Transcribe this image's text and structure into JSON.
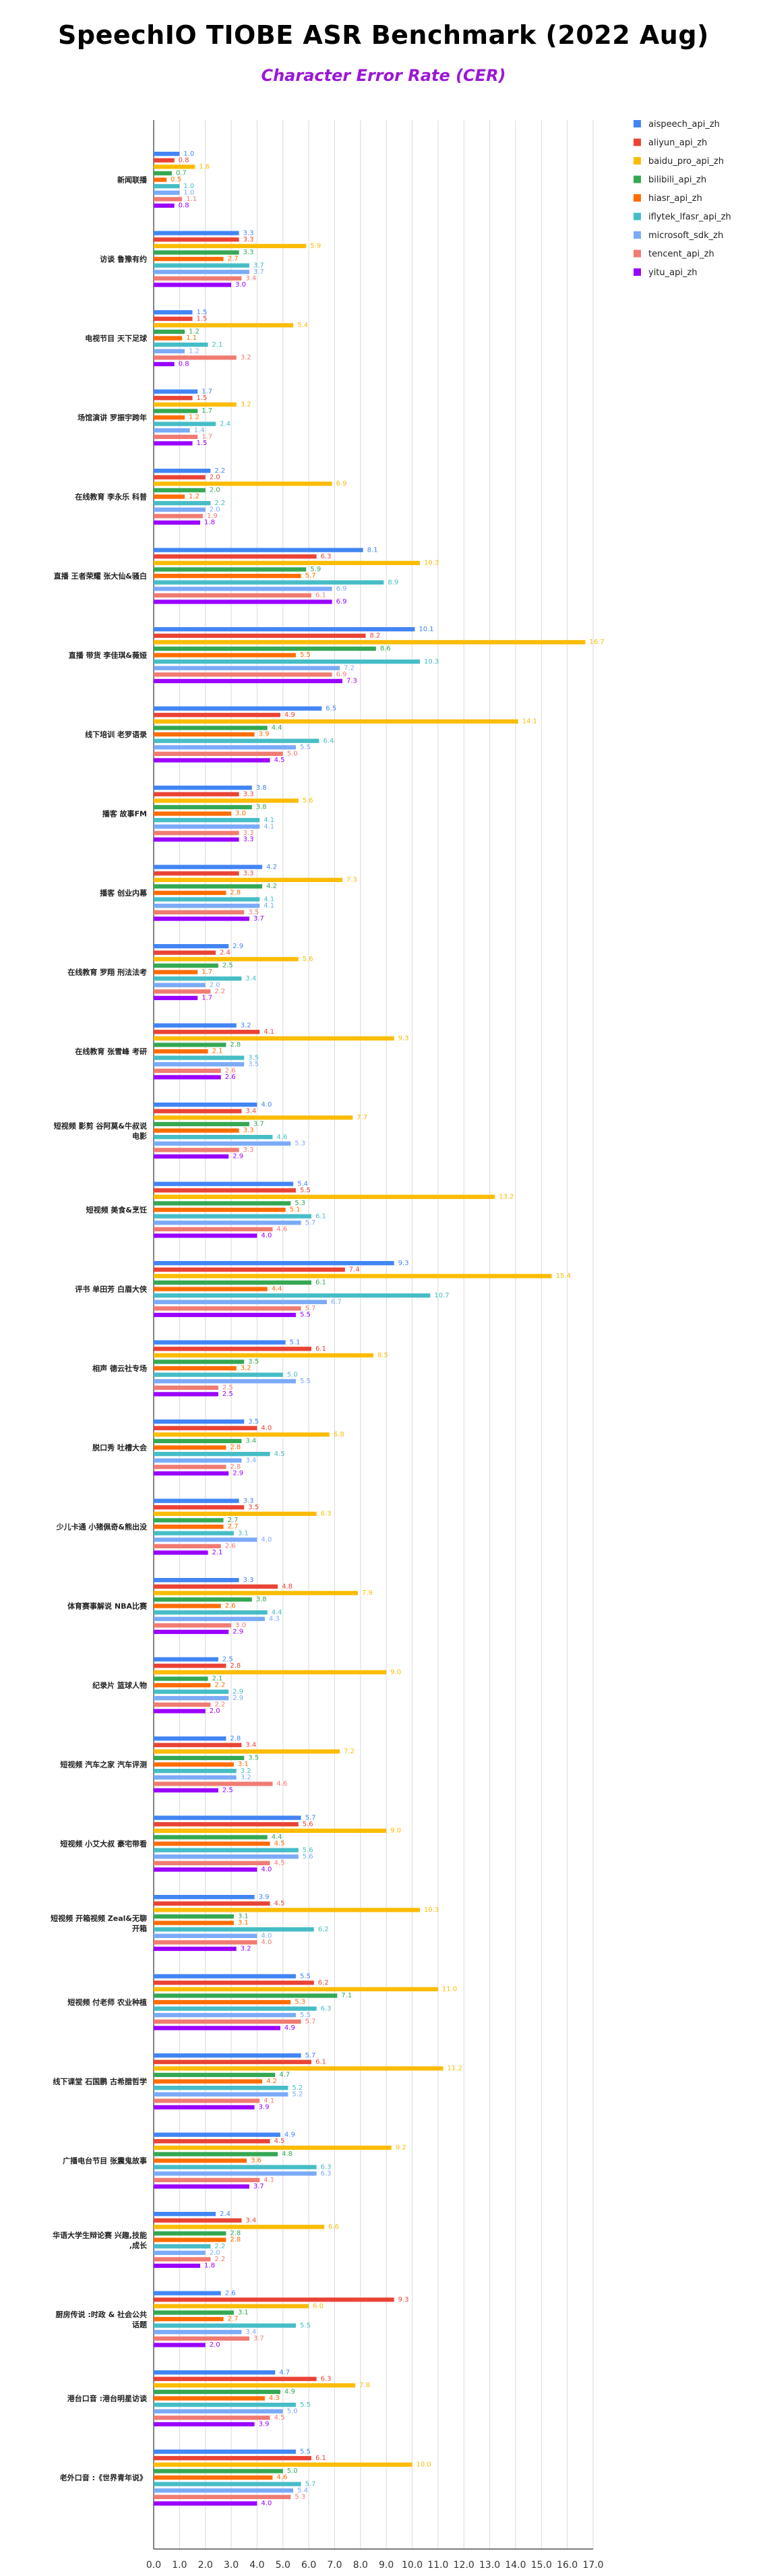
{
  "title": "SpeechIO TIOBE ASR Benchmark (2022 Aug)",
  "subtitle": "Character Error Rate (CER)",
  "chart_data": {
    "type": "bar",
    "orientation": "horizontal",
    "title": "SpeechIO TIOBE ASR Benchmark (2022 Aug)",
    "subtitle": "Character Error Rate (CER)",
    "xlim": [
      0,
      17
    ],
    "xticks": [
      "0.0",
      "1.0",
      "2.0",
      "3.0",
      "4.0",
      "5.0",
      "6.0",
      "7.0",
      "8.0",
      "9.0",
      "10.0",
      "11.0",
      "12.0",
      "13.0",
      "14.0",
      "15.0",
      "16.0",
      "17.0"
    ],
    "grid": true,
    "legend_position": "top-right",
    "categories": [
      "新闻联播",
      "访谈 鲁豫有约",
      "电视节目 天下足球",
      "场馆演讲 罗振宇跨年",
      "在线教育 李永乐 科普",
      "直播 王者荣耀 张大仙&骚白",
      "直播 带货 李佳琪&薇娅",
      "线下培训 老罗语录",
      "播客 故事FM",
      "播客 创业内幕",
      "在线教育 罗翔 刑法法考",
      "在线教育 张雪峰 考研",
      "短视频 影剪 谷阿莫&牛叔说电影",
      "短视频 美食&烹饪",
      "评书 单田芳 白眉大侠",
      "相声 德云社专场",
      "脱口秀 吐槽大会",
      "少儿卡通 小猪佩奇&熊出没",
      "体育赛事解说 NBA比赛",
      "纪录片 篮球人物",
      "短视频 汽车之家 汽车评测",
      "短视频 小艾大叔 豪宅带看",
      "短视频 开箱视频 Zeal&无聊开箱",
      "短视频 付老师 农业种植",
      "线下课堂 石国鹏 古希腊哲学",
      "广播电台节目 张震鬼故事",
      "华语大学生辩论赛 兴趣,技能,成长",
      "厨房传说 :时政 & 社会公共话题",
      "港台口音 :港台明星访谈",
      "老外口音 :《世界青年说》"
    ],
    "series": [
      {
        "name": "aispeech_api_zh",
        "color": "#4285f4",
        "values": [
          1.0,
          3.3,
          1.5,
          1.7,
          2.2,
          8.1,
          10.1,
          6.5,
          3.8,
          4.2,
          2.9,
          3.2,
          4.0,
          5.4,
          9.3,
          5.1,
          3.5,
          3.3,
          3.3,
          2.5,
          2.8,
          5.7,
          3.9,
          5.5,
          5.7,
          4.9,
          2.4,
          2.6,
          4.7,
          5.5
        ]
      },
      {
        "name": "aliyun_api_zh",
        "color": "#ea4335",
        "values": [
          0.8,
          3.3,
          1.5,
          1.5,
          2.0,
          6.3,
          8.2,
          4.9,
          3.3,
          3.3,
          2.4,
          4.1,
          3.4,
          5.5,
          7.4,
          6.1,
          4.0,
          3.5,
          4.8,
          2.8,
          3.4,
          5.6,
          4.5,
          6.2,
          6.1,
          4.5,
          3.4,
          9.3,
          6.3,
          6.1
        ]
      },
      {
        "name": "baidu_pro_api_zh",
        "color": "#fbbc04",
        "values": [
          1.6,
          5.9,
          5.4,
          3.2,
          6.9,
          10.3,
          16.7,
          14.1,
          5.6,
          7.3,
          5.6,
          9.3,
          7.7,
          13.2,
          15.4,
          8.5,
          6.8,
          6.3,
          7.9,
          9.0,
          7.2,
          9.0,
          10.3,
          11.0,
          11.2,
          9.2,
          6.6,
          6.0,
          7.8,
          10.0
        ]
      },
      {
        "name": "bilibili_api_zh",
        "color": "#34a853",
        "values": [
          0.7,
          3.3,
          1.2,
          1.7,
          2.0,
          5.9,
          8.6,
          4.4,
          3.8,
          4.2,
          2.5,
          2.8,
          3.7,
          5.3,
          6.1,
          3.5,
          3.4,
          2.7,
          3.8,
          2.1,
          3.5,
          4.4,
          3.1,
          7.1,
          4.7,
          4.8,
          2.8,
          3.1,
          4.9,
          5.0
        ]
      },
      {
        "name": "hiasr_api_zh",
        "color": "#ff6d01",
        "values": [
          0.5,
          2.7,
          1.1,
          1.2,
          1.2,
          5.7,
          5.5,
          3.9,
          3.0,
          2.8,
          1.7,
          2.1,
          3.3,
          5.1,
          4.4,
          3.2,
          2.8,
          2.7,
          2.6,
          2.2,
          3.1,
          4.5,
          3.1,
          5.3,
          4.2,
          3.6,
          2.8,
          2.7,
          4.3,
          4.6
        ]
      },
      {
        "name": "iflytek_lfasr_api_zh",
        "color": "#46bdc6",
        "values": [
          1.0,
          3.7,
          2.1,
          2.4,
          2.2,
          8.9,
          10.3,
          6.4,
          4.1,
          4.1,
          3.4,
          3.5,
          4.6,
          6.1,
          10.7,
          5.0,
          4.5,
          3.1,
          4.4,
          2.9,
          3.2,
          5.6,
          6.2,
          6.3,
          5.2,
          6.3,
          2.2,
          5.5,
          5.5,
          5.7
        ]
      },
      {
        "name": "microsoft_sdk_zh",
        "color": "#7baaf7",
        "values": [
          1.0,
          3.7,
          1.2,
          1.4,
          2.0,
          6.9,
          7.2,
          5.5,
          4.1,
          4.1,
          2.0,
          3.5,
          5.3,
          5.7,
          6.7,
          5.5,
          3.4,
          4.0,
          4.3,
          2.9,
          3.2,
          5.6,
          4.0,
          5.5,
          5.2,
          6.3,
          2.0,
          3.4,
          5.0,
          5.4
        ]
      },
      {
        "name": "tencent_api_zh",
        "color": "#f07b72",
        "values": [
          1.1,
          3.4,
          3.2,
          1.7,
          1.9,
          6.1,
          6.9,
          5.0,
          3.3,
          3.5,
          2.2,
          2.6,
          3.3,
          4.6,
          5.7,
          2.5,
          2.8,
          2.6,
          3.0,
          2.2,
          4.6,
          4.5,
          4.0,
          5.7,
          4.1,
          4.1,
          2.2,
          3.7,
          4.5,
          5.3
        ]
      },
      {
        "name": "yitu_api_zh",
        "color": "#9900ff",
        "values": [
          0.8,
          3.0,
          0.8,
          1.5,
          1.8,
          6.9,
          7.3,
          4.5,
          3.3,
          3.7,
          1.7,
          2.6,
          2.9,
          4.0,
          5.5,
          2.5,
          2.9,
          2.1,
          2.9,
          2.0,
          2.5,
          4.0,
          3.2,
          4.9,
          3.9,
          3.7,
          1.8,
          2.0,
          3.9,
          4.0
        ]
      }
    ]
  }
}
